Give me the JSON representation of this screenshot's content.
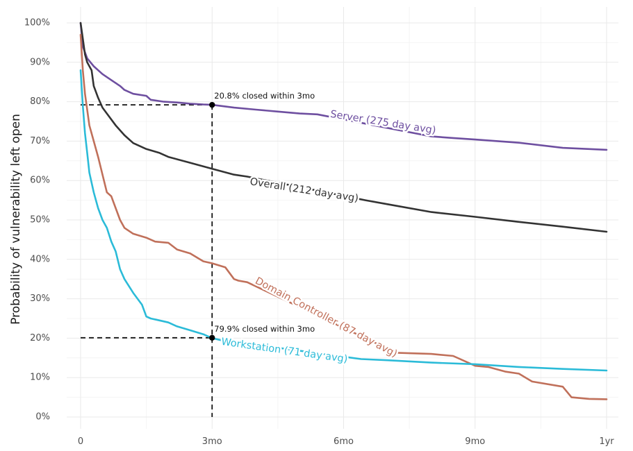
{
  "chart_data": {
    "type": "line",
    "title": "",
    "ylabel": "Probability of vulnerability left open",
    "xlabel": "",
    "xlim": [
      0,
      12
    ],
    "ylim": [
      0,
      100
    ],
    "x_ticks": [
      {
        "value": 0,
        "label": "0"
      },
      {
        "value": 3,
        "label": "3mo"
      },
      {
        "value": 6,
        "label": "6mo"
      },
      {
        "value": 9,
        "label": "9mo"
      },
      {
        "value": 12,
        "label": "1yr"
      }
    ],
    "y_ticks": [
      {
        "value": 0,
        "label": "0%"
      },
      {
        "value": 10,
        "label": "10%"
      },
      {
        "value": 20,
        "label": "20%"
      },
      {
        "value": 30,
        "label": "30%"
      },
      {
        "value": 40,
        "label": "40%"
      },
      {
        "value": 50,
        "label": "50%"
      },
      {
        "value": 60,
        "label": "60%"
      },
      {
        "value": 70,
        "label": "70%"
      },
      {
        "value": 80,
        "label": "80%"
      },
      {
        "value": 90,
        "label": "90%"
      },
      {
        "value": 100,
        "label": "100%"
      }
    ],
    "grid": true,
    "legend": "none",
    "series": [
      {
        "name": "Server (275 day avg)",
        "color": "#6e4fa0",
        "x": [
          0,
          0.05,
          0.15,
          0.3,
          0.5,
          0.7,
          0.9,
          1.0,
          1.2,
          1.5,
          1.6,
          1.9,
          2.2,
          2.5,
          2.8,
          3.0,
          3.5,
          4.0,
          4.5,
          5.0,
          5.4,
          8.0,
          8.5,
          9.0,
          10.0,
          11.0,
          12.0
        ],
        "y": [
          100,
          94,
          91,
          89,
          87,
          85.5,
          84,
          83,
          82,
          81.5,
          80.5,
          80,
          79.8,
          79.5,
          79.3,
          79.2,
          78.5,
          78,
          77.5,
          77,
          76.8,
          71.2,
          70.8,
          70.4,
          69.6,
          68.3,
          67.8
        ],
        "label_text": "Server (275 day avg)",
        "label_x": 6.9,
        "label_y": 74.7,
        "label_angle": 9
      },
      {
        "name": "Overall (212 day avg)",
        "color": "#333333",
        "x": [
          0,
          0.05,
          0.1,
          0.15,
          0.25,
          0.3,
          0.4,
          0.5,
          0.6,
          0.8,
          1.0,
          1.2,
          1.5,
          1.8,
          2.0,
          2.5,
          3.0,
          3.5,
          3.8,
          6.5,
          7.0,
          8.0,
          9.0,
          10.0,
          11.0,
          12.0
        ],
        "y": [
          100,
          96,
          92,
          90,
          88,
          84,
          81,
          78.5,
          77,
          74,
          71.5,
          69.5,
          68,
          67,
          66,
          64.5,
          63,
          61.5,
          61,
          55,
          54,
          52,
          50.8,
          49.5,
          48.3,
          47
        ],
        "label_text": "Overall (212 day avg)",
        "label_x": 5.1,
        "label_y": 57.5,
        "label_angle": 9
      },
      {
        "name": "Domain Controller (87 day avg)",
        "color": "#c0705a",
        "x": [
          0,
          0.05,
          0.1,
          0.2,
          0.3,
          0.4,
          0.5,
          0.6,
          0.7,
          0.8,
          0.9,
          1.0,
          1.2,
          1.5,
          1.7,
          2.0,
          2.2,
          2.5,
          2.8,
          3.0,
          3.3,
          3.5,
          3.6,
          3.8,
          7.2,
          8.0,
          8.5,
          9.0,
          9.3,
          9.7,
          10.0,
          10.3,
          11.0,
          11.2,
          11.6,
          12.0
        ],
        "y": [
          97,
          88,
          82,
          74,
          70,
          66,
          61.5,
          57,
          56,
          53,
          50,
          48,
          46.5,
          45.5,
          44.5,
          44.2,
          42.5,
          41.5,
          39.5,
          39,
          38,
          35,
          34.6,
          34.2,
          16.3,
          16,
          15.5,
          13,
          12.7,
          11.5,
          11,
          9,
          7.7,
          5,
          4.6,
          4.5
        ],
        "label_text": "Domain Controller (87 day avg)",
        "label_x": 5.6,
        "label_y": 25.2,
        "label_angle": 28
      },
      {
        "name": "Workstation (71 day avg)",
        "color": "#2bbbd8",
        "x": [
          0,
          0.05,
          0.1,
          0.15,
          0.2,
          0.3,
          0.4,
          0.5,
          0.6,
          0.7,
          0.8,
          0.9,
          1.0,
          1.2,
          1.4,
          1.5,
          1.6,
          1.8,
          2.0,
          2.2,
          2.5,
          2.8,
          3.0,
          3.2,
          6.4,
          7.0,
          8.0,
          9.0,
          10.0,
          11.0,
          12.0
        ],
        "y": [
          88,
          79,
          72,
          67,
          62,
          57,
          53,
          50,
          48,
          44.5,
          42,
          37.5,
          35,
          31.5,
          28.5,
          25.5,
          25,
          24.5,
          24,
          23,
          22,
          21,
          20,
          19.5,
          14.7,
          14.4,
          13.8,
          13.4,
          12.7,
          12.2,
          11.8
        ],
        "label_text": "Workstation (71 day avg)",
        "label_x": 4.65,
        "label_y": 16.8,
        "label_angle": 8
      }
    ],
    "annotations": [
      {
        "text": "20.8% closed within 3mo",
        "x": 3,
        "y": 79.2,
        "color": "#111111"
      },
      {
        "text": "79.9% closed within 3mo",
        "x": 3,
        "y": 20.1,
        "color": "#111111"
      }
    ]
  }
}
